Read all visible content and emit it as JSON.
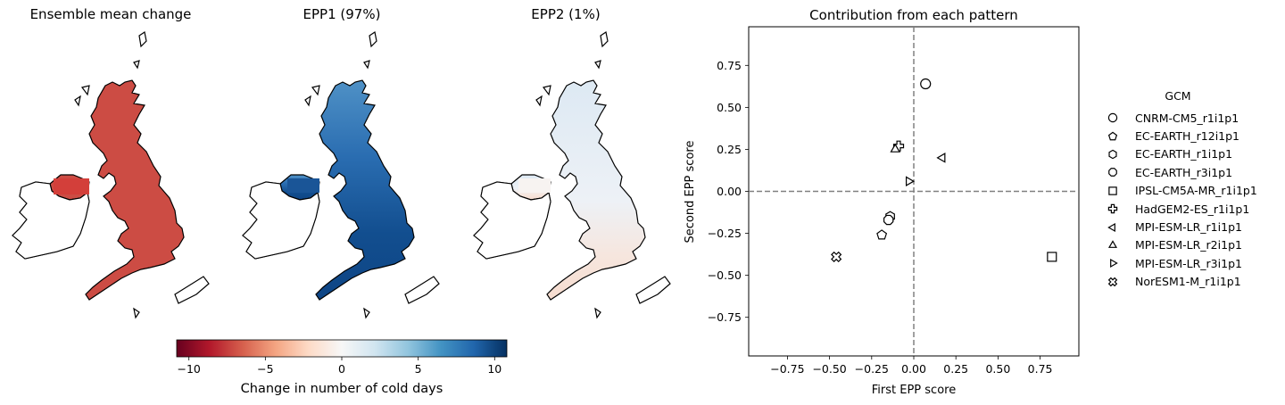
{
  "maps": [
    {
      "title": "Ensemble mean change"
    },
    {
      "title": "EPP1 (97%)"
    },
    {
      "title": "EPP2 (1%)"
    }
  ],
  "colorbar": {
    "label": "Change in number of cold days",
    "ticks": [
      -10,
      -5,
      0,
      5,
      10
    ],
    "tick_labels": [
      "−10",
      "−5",
      "0",
      "5",
      "10"
    ],
    "range": [
      -10.8,
      10.8
    ],
    "colormap": "RdBu"
  },
  "chart_data": {
    "type": "scatter",
    "title": "Contribution from each pattern",
    "xlabel": "First EPP score",
    "ylabel": "Second EPP score",
    "xlim": [
      -0.98,
      0.98
    ],
    "ylim": [
      -0.98,
      0.98
    ],
    "xticks": [
      -0.75,
      -0.5,
      -0.25,
      0.0,
      0.25,
      0.5,
      0.75
    ],
    "xtick_labels": [
      "−0.75",
      "−0.50",
      "−0.25",
      "0.00",
      "0.25",
      "0.50",
      "0.75"
    ],
    "yticks": [
      -0.75,
      -0.5,
      -0.25,
      0.0,
      0.25,
      0.5,
      0.75
    ],
    "ytick_labels": [
      "−0.75",
      "−0.50",
      "−0.25",
      "0.00",
      "0.25",
      "0.50",
      "0.75"
    ],
    "reference_lines": {
      "x": 0,
      "y": 0,
      "style": "dashed"
    },
    "legend": {
      "title": "GCM",
      "placement": "right"
    },
    "series": [
      {
        "name": "CNRM-CM5_r1i1p1",
        "marker": "circle",
        "x": 0.07,
        "y": 0.64
      },
      {
        "name": "EC-EARTH_r12i1p1",
        "marker": "pentagon",
        "x": -0.19,
        "y": -0.26
      },
      {
        "name": "EC-EARTH_r1i1p1",
        "marker": "hexagon",
        "x": -0.14,
        "y": -0.15
      },
      {
        "name": "EC-EARTH_r3i1p1",
        "marker": "octagon",
        "x": -0.15,
        "y": -0.17
      },
      {
        "name": "IPSL-CM5A-MR_r1i1p1",
        "marker": "square",
        "x": 0.82,
        "y": -0.39
      },
      {
        "name": "HadGEM2-ES_r1i1p1",
        "marker": "plus",
        "x": -0.09,
        "y": 0.27
      },
      {
        "name": "MPI-ESM-LR_r1i1p1",
        "marker": "triangle-left",
        "x": 0.17,
        "y": 0.2
      },
      {
        "name": "MPI-ESM-LR_r2i1p1",
        "marker": "triangle-up",
        "x": -0.11,
        "y": 0.25
      },
      {
        "name": "MPI-ESM-LR_r3i1p1",
        "marker": "triangle-right",
        "x": -0.03,
        "y": 0.06
      },
      {
        "name": "NorESM1-M_r1i1p1",
        "marker": "x-filled",
        "x": -0.46,
        "y": -0.39
      }
    ]
  }
}
